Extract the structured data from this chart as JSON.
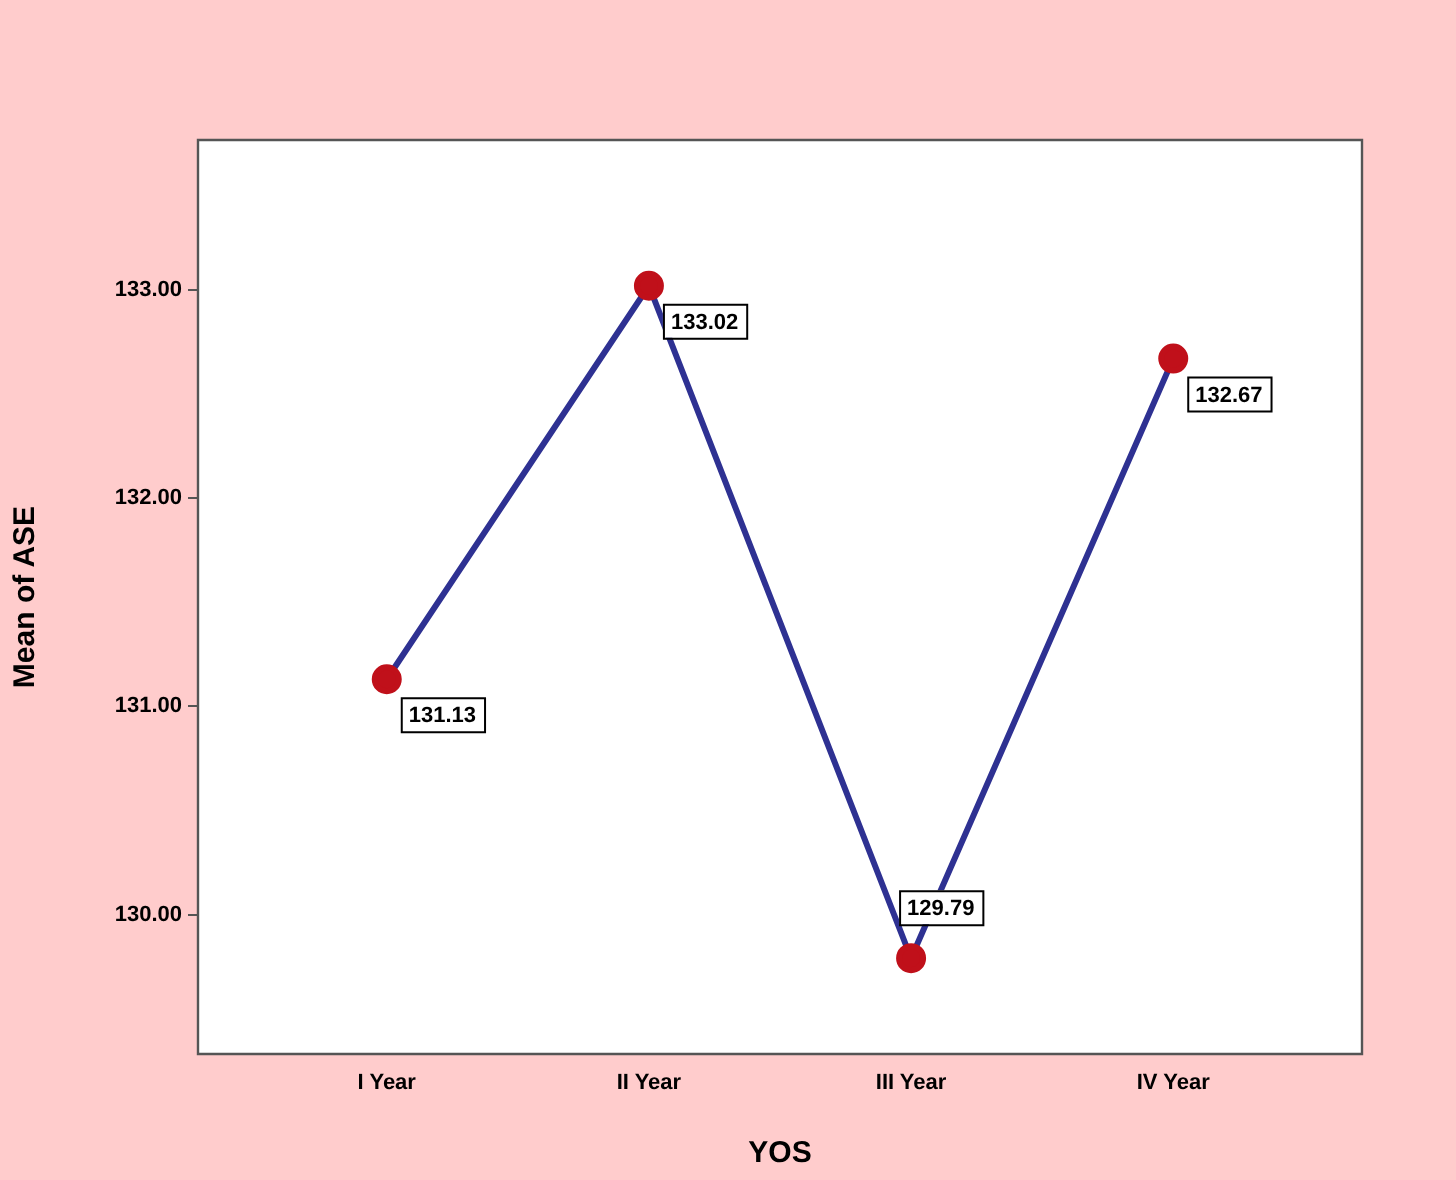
{
  "chart_data": {
    "type": "line",
    "xlabel": "YOS",
    "ylabel": "Mean of ASE",
    "categories": [
      "I Year",
      "II Year",
      "III Year",
      "IV Year"
    ],
    "series": [
      {
        "color": "#2e3192",
        "colors": [
          "#c0101a",
          "#c0101a",
          "#c0101a",
          "#c0101a"
        ],
        "values": [
          131.13,
          133.02,
          129.79,
          132.67
        ]
      }
    ],
    "marker": "circle",
    "data_labels": true,
    "ylim": [
      129.33,
      133.72
    ],
    "yticks": [
      {
        "value": 130,
        "label": "130.00"
      },
      {
        "value": 131,
        "label": "131.00"
      },
      {
        "value": 132,
        "label": "132.00"
      },
      {
        "value": 133,
        "label": "133.00"
      }
    ],
    "grid": false,
    "legend": false
  }
}
